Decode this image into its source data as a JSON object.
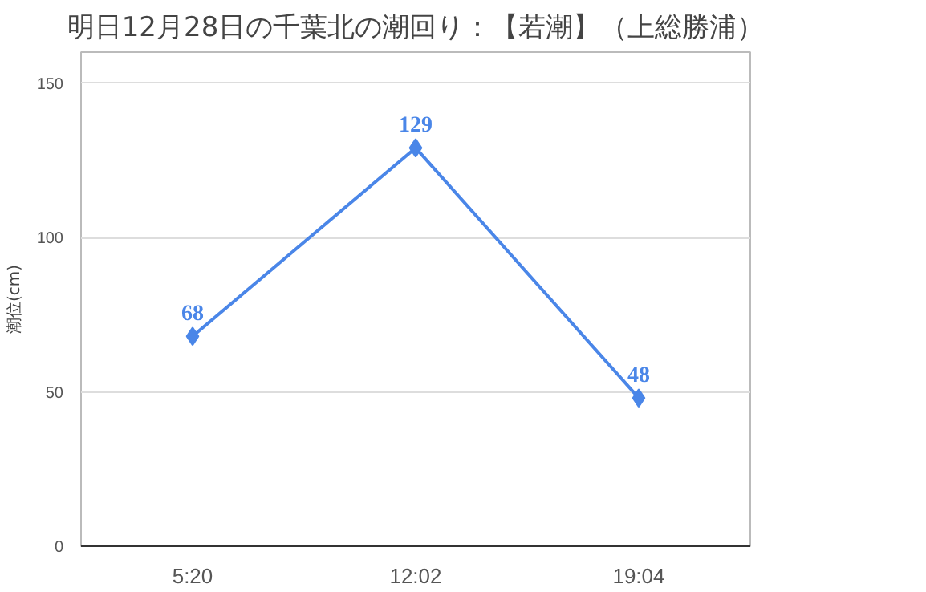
{
  "chart_data": {
    "type": "line",
    "title": "明日12月28日の千葉北の潮回り：【若潮】（上総勝浦）",
    "ylabel": "潮位(cm)",
    "categories": [
      "5:20",
      "12:02",
      "19:04"
    ],
    "series": [
      {
        "color": "#4a86e8",
        "values": [
          68,
          129,
          48
        ]
      }
    ],
    "ylim": [
      0,
      160
    ],
    "yticks": [
      0,
      50,
      100,
      150
    ],
    "grid": "y",
    "marker": "diamond",
    "line_style": "solid",
    "data_labels": true
  }
}
